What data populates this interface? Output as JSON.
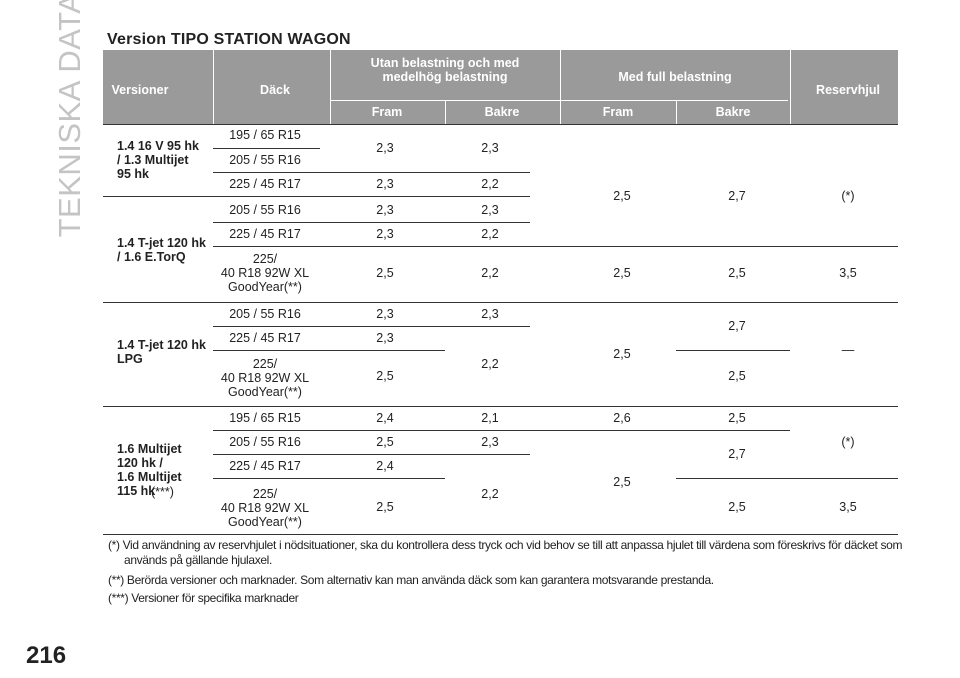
{
  "header": {
    "side_label": "TEKNISKA DATA",
    "title": "Version TIPO STATION WAGON",
    "page_number": "216"
  },
  "table": {
    "columns": [
      "Versioner",
      "Däck",
      "Utan belastning och med\nmedelhög belastning",
      "Med full belastning",
      "Reservhjul"
    ],
    "subcolumns": [
      "Fram",
      "Bakre",
      "Fram",
      "Bakre"
    ],
    "cells": [
      "1.4 16 V 95 hk\n/ 1.3 Multijet\n95 hk",
      "195 / 65 R15",
      "205 / 55 R16",
      "225 / 45 R17",
      "2,3",
      "2,3",
      "2,3",
      "2,2",
      "2,5",
      "2,7",
      "(*)",
      "1.4 T-jet 120 hk\n/ 1.6 E.TorQ",
      "205 / 55 R16",
      "2,3",
      "2,3",
      "225 / 45 R17",
      "2,3",
      "2,2",
      "225/\n40 R18 92W XL\nGoodYear(**)",
      "2,5",
      "2,2",
      "2,5",
      "2,5",
      "3,5",
      "1.4 T-jet 120 hk\nLPG",
      "205 / 55 R16",
      "2,3",
      "2,3",
      "225 / 45 R17",
      "2,3",
      "225/\n40 R18 92W XL\nGoodYear(**)",
      "2,5",
      "2,2",
      "2,5",
      "2,7",
      "2,5",
      "—",
      "1.6 Multijet\n120 hk /\n1.6 Multijet\n115 hk",
      "(***)",
      "195 / 65 R15",
      "2,4",
      "2,1",
      "2,6",
      "2,5",
      "205 / 55 R16",
      "2,5",
      "2,3",
      "2,7",
      "(*)",
      "225 / 45 R17",
      "2,4",
      "225/\n40 R18 92W XL\nGoodYear(**)",
      "2,5",
      "2,2",
      "2,5",
      "2,5",
      "3,5"
    ]
  },
  "footnotes": [
    "(*) Vid användning av reservhjulet i nödsituationer, ska du kontrollera dess tryck och vid behov se till att anpassa hjulet till värdena som föreskrivs för däcket som används på gällande hjulaxel.",
    "(**) Berörda versioner och marknader. Som alternativ kan man använda däck som kan garantera motsvarande prestanda.",
    "(***) Versioner för specifika marknader"
  ]
}
